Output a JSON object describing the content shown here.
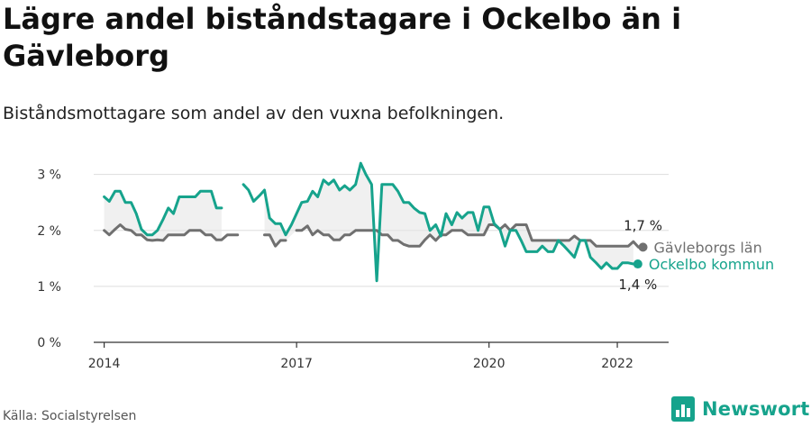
{
  "header": {
    "title": "Lägre andel biståndstagare i Ockelbo än i Gävleborg",
    "subtitle": "Biståndsmottagare som andel av den vuxna befolkningen."
  },
  "footer": {
    "source": "Källa: Socialstyrelsen",
    "brand": "Newsworthy"
  },
  "colors": {
    "county": "#707070",
    "municipality": "#16a38c",
    "band": "#e6e6e6",
    "grid": "#dddddd"
  },
  "chart_data": {
    "type": "line",
    "yticks": [
      0,
      1,
      2,
      3
    ],
    "ytick_labels": [
      "0 %",
      "1 %",
      "2 %",
      "3 %"
    ],
    "xticks": [
      2014,
      2017,
      2020,
      2022
    ],
    "ylim": [
      0,
      3.3
    ],
    "xlim": [
      2013.5,
      2022.8
    ],
    "series": [
      {
        "name": "Gävleborgs län",
        "end_label": "1,7 %",
        "values": [
          [
            2014.0,
            2.0
          ],
          [
            2014.08,
            1.92
          ],
          [
            2014.17,
            2.02
          ],
          [
            2014.25,
            2.1
          ],
          [
            2014.33,
            2.02
          ],
          [
            2014.42,
            2.0
          ],
          [
            2014.5,
            1.92
          ],
          [
            2014.58,
            1.92
          ],
          [
            2014.67,
            1.83
          ],
          [
            2014.75,
            1.82
          ],
          [
            2014.83,
            1.83
          ],
          [
            2014.92,
            1.82
          ],
          [
            2015.0,
            1.92
          ],
          [
            2015.08,
            1.92
          ],
          [
            2015.17,
            1.92
          ],
          [
            2015.25,
            1.92
          ],
          [
            2015.33,
            2.0
          ],
          [
            2015.42,
            2.0
          ],
          [
            2015.5,
            2.0
          ],
          [
            2015.58,
            1.92
          ],
          [
            2015.67,
            1.92
          ],
          [
            2015.75,
            1.83
          ],
          [
            2015.83,
            1.83
          ],
          [
            2015.92,
            1.92
          ],
          [
            2016.0,
            1.92
          ],
          [
            2016.08,
            1.92
          ],
          null,
          [
            2016.5,
            1.92
          ],
          [
            2016.58,
            1.92
          ],
          [
            2016.67,
            1.72
          ],
          [
            2016.75,
            1.82
          ],
          [
            2016.83,
            1.82
          ],
          null,
          [
            2017.0,
            2.0
          ],
          [
            2017.08,
            2.0
          ],
          [
            2017.17,
            2.08
          ],
          [
            2017.25,
            1.92
          ],
          [
            2017.33,
            2.0
          ],
          [
            2017.42,
            1.92
          ],
          [
            2017.5,
            1.92
          ],
          [
            2017.58,
            1.83
          ],
          [
            2017.67,
            1.83
          ],
          [
            2017.75,
            1.92
          ],
          [
            2017.83,
            1.92
          ],
          [
            2017.92,
            2.0
          ],
          [
            2018.0,
            2.0
          ],
          [
            2018.08,
            2.0
          ],
          [
            2018.17,
            2.0
          ],
          [
            2018.25,
            2.0
          ],
          [
            2018.33,
            1.92
          ],
          [
            2018.42,
            1.92
          ],
          [
            2018.5,
            1.82
          ],
          [
            2018.58,
            1.82
          ],
          [
            2018.67,
            1.75
          ],
          [
            2018.75,
            1.72
          ],
          [
            2018.83,
            1.72
          ],
          [
            2018.92,
            1.72
          ],
          [
            2019.0,
            1.83
          ],
          [
            2019.08,
            1.92
          ],
          [
            2019.17,
            1.82
          ],
          [
            2019.25,
            1.92
          ],
          [
            2019.33,
            1.92
          ],
          [
            2019.42,
            2.0
          ],
          [
            2019.5,
            2.0
          ],
          [
            2019.58,
            2.0
          ],
          [
            2019.67,
            1.92
          ],
          [
            2019.75,
            1.92
          ],
          [
            2019.83,
            1.92
          ],
          [
            2019.92,
            1.92
          ],
          [
            2020.0,
            2.1
          ],
          [
            2020.08,
            2.1
          ],
          [
            2020.17,
            2.02
          ],
          [
            2020.25,
            2.1
          ],
          [
            2020.33,
            2.0
          ],
          [
            2020.42,
            2.1
          ],
          [
            2020.5,
            2.1
          ],
          [
            2020.58,
            2.1
          ],
          [
            2020.67,
            1.82
          ],
          [
            2020.75,
            1.82
          ],
          [
            2020.83,
            1.82
          ],
          [
            2020.92,
            1.82
          ],
          [
            2021.0,
            1.82
          ],
          [
            2021.08,
            1.82
          ],
          [
            2021.17,
            1.82
          ],
          [
            2021.25,
            1.82
          ],
          [
            2021.33,
            1.9
          ],
          [
            2021.42,
            1.82
          ],
          [
            2021.5,
            1.82
          ],
          [
            2021.58,
            1.82
          ],
          [
            2021.67,
            1.72
          ],
          [
            2021.75,
            1.72
          ],
          [
            2021.83,
            1.72
          ],
          [
            2021.92,
            1.72
          ],
          [
            2022.0,
            1.72
          ],
          [
            2022.08,
            1.72
          ],
          [
            2022.17,
            1.72
          ],
          [
            2022.25,
            1.8
          ],
          [
            2022.33,
            1.7
          ]
        ]
      },
      {
        "name": "Ockelbo kommun",
        "end_label": "1,4 %",
        "values": [
          [
            2014.0,
            2.6
          ],
          [
            2014.08,
            2.52
          ],
          [
            2014.17,
            2.7
          ],
          [
            2014.25,
            2.7
          ],
          [
            2014.33,
            2.5
          ],
          [
            2014.42,
            2.5
          ],
          [
            2014.5,
            2.3
          ],
          [
            2014.58,
            2.02
          ],
          [
            2014.67,
            1.92
          ],
          [
            2014.75,
            1.92
          ],
          [
            2014.83,
            2.0
          ],
          [
            2014.92,
            2.2
          ],
          [
            2015.0,
            2.4
          ],
          [
            2015.08,
            2.3
          ],
          [
            2015.17,
            2.6
          ],
          [
            2015.25,
            2.6
          ],
          [
            2015.33,
            2.6
          ],
          [
            2015.42,
            2.6
          ],
          [
            2015.5,
            2.7
          ],
          [
            2015.58,
            2.7
          ],
          [
            2015.67,
            2.7
          ],
          [
            2015.75,
            2.4
          ],
          [
            2015.83,
            2.4
          ],
          null,
          [
            2016.17,
            2.82
          ],
          [
            2016.25,
            2.72
          ],
          [
            2016.33,
            2.52
          ],
          [
            2016.42,
            2.62
          ],
          [
            2016.5,
            2.72
          ],
          [
            2016.58,
            2.22
          ],
          [
            2016.67,
            2.12
          ],
          [
            2016.75,
            2.12
          ],
          [
            2016.83,
            1.92
          ],
          [
            2016.92,
            2.1
          ],
          [
            2017.0,
            2.3
          ],
          [
            2017.08,
            2.5
          ],
          [
            2017.17,
            2.52
          ],
          [
            2017.25,
            2.7
          ],
          [
            2017.33,
            2.6
          ],
          [
            2017.42,
            2.9
          ],
          [
            2017.5,
            2.82
          ],
          [
            2017.58,
            2.9
          ],
          [
            2017.67,
            2.72
          ],
          [
            2017.75,
            2.8
          ],
          [
            2017.83,
            2.72
          ],
          [
            2017.92,
            2.82
          ],
          [
            2018.0,
            3.2
          ],
          [
            2018.08,
            3.0
          ],
          [
            2018.17,
            2.82
          ],
          [
            2018.25,
            1.1
          ],
          [
            2018.33,
            2.82
          ],
          [
            2018.42,
            2.82
          ],
          [
            2018.5,
            2.82
          ],
          [
            2018.58,
            2.7
          ],
          [
            2018.67,
            2.5
          ],
          [
            2018.75,
            2.5
          ],
          [
            2018.83,
            2.4
          ],
          [
            2018.92,
            2.32
          ],
          [
            2019.0,
            2.3
          ],
          [
            2019.08,
            2.0
          ],
          [
            2019.17,
            2.1
          ],
          [
            2019.25,
            1.9
          ],
          [
            2019.33,
            2.3
          ],
          [
            2019.42,
            2.1
          ],
          [
            2019.5,
            2.32
          ],
          [
            2019.58,
            2.22
          ],
          [
            2019.67,
            2.32
          ],
          [
            2019.75,
            2.32
          ],
          [
            2019.83,
            2.0
          ],
          [
            2019.92,
            2.42
          ],
          [
            2020.0,
            2.42
          ],
          [
            2020.08,
            2.12
          ],
          [
            2020.17,
            2.02
          ],
          [
            2020.25,
            1.72
          ],
          [
            2020.33,
            2.0
          ],
          [
            2020.42,
            2.0
          ],
          [
            2020.5,
            1.82
          ],
          [
            2020.58,
            1.62
          ],
          [
            2020.67,
            1.62
          ],
          [
            2020.75,
            1.62
          ],
          [
            2020.83,
            1.72
          ],
          [
            2020.92,
            1.62
          ],
          [
            2021.0,
            1.62
          ],
          [
            2021.08,
            1.82
          ],
          [
            2021.17,
            1.72
          ],
          [
            2021.25,
            1.62
          ],
          [
            2021.33,
            1.52
          ],
          [
            2021.42,
            1.82
          ],
          [
            2021.5,
            1.82
          ],
          [
            2021.58,
            1.52
          ],
          [
            2021.67,
            1.42
          ],
          [
            2021.75,
            1.32
          ],
          [
            2021.83,
            1.42
          ],
          [
            2021.92,
            1.32
          ],
          [
            2022.0,
            1.32
          ],
          [
            2022.08,
            1.42
          ],
          [
            2022.17,
            1.42
          ],
          [
            2022.25,
            1.4
          ]
        ]
      }
    ]
  }
}
